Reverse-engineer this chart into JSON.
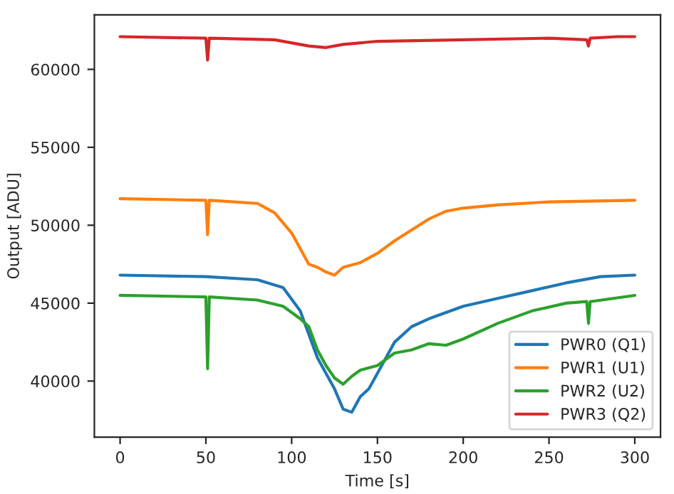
{
  "chart_data": {
    "type": "line",
    "xlabel": "Time [s]",
    "ylabel": "Output [ADU]",
    "xlim": [
      -15,
      315
    ],
    "xticks": [
      0,
      50,
      100,
      150,
      200,
      250,
      300
    ],
    "ylim": [
      36400,
      63500
    ],
    "yticks": [
      40000,
      45000,
      50000,
      55000,
      60000
    ],
    "grid": false,
    "legend": "bottom right",
    "marker": "none",
    "line_style": "solid",
    "series": [
      {
        "name": "PWR0 (Q1)",
        "color": "#1f77b4",
        "x": [
          0,
          50,
          80,
          95,
          105,
          110,
          115,
          120,
          125,
          130,
          135,
          140,
          145,
          150,
          155,
          160,
          170,
          180,
          200,
          220,
          240,
          260,
          280,
          300
        ],
        "values": [
          46800,
          46700,
          46500,
          46000,
          44500,
          43000,
          41500,
          40500,
          39500,
          38200,
          38000,
          39000,
          39500,
          40500,
          41500,
          42500,
          43500,
          44000,
          44800,
          45300,
          45800,
          46300,
          46700,
          46800
        ]
      },
      {
        "name": "PWR1 (U1)",
        "color": "#ff7f0e",
        "x": [
          0,
          50,
          51,
          52,
          80,
          90,
          100,
          105,
          110,
          115,
          120,
          125,
          130,
          140,
          150,
          160,
          170,
          180,
          190,
          200,
          220,
          250,
          300
        ],
        "values": [
          51700,
          51600,
          49400,
          51600,
          51400,
          50800,
          49500,
          48500,
          47500,
          47300,
          47000,
          46800,
          47300,
          47600,
          48200,
          49000,
          49700,
          50400,
          50900,
          51100,
          51300,
          51500,
          51600
        ]
      },
      {
        "name": "PWR2 (U2)",
        "color": "#2ca02c",
        "x": [
          0,
          50,
          51,
          52,
          80,
          95,
          105,
          110,
          115,
          120,
          125,
          130,
          135,
          140,
          150,
          160,
          170,
          180,
          190,
          200,
          220,
          240,
          260,
          272,
          273,
          274,
          300
        ],
        "values": [
          45500,
          45400,
          40800,
          45400,
          45200,
          44800,
          44000,
          43500,
          42000,
          41000,
          40200,
          39800,
          40300,
          40700,
          41000,
          41800,
          42000,
          42400,
          42300,
          42700,
          43700,
          44500,
          45000,
          45100,
          43700,
          45100,
          45500
        ]
      },
      {
        "name": "PWR3 (Q2)",
        "color": "#d62728",
        "x": [
          0,
          50,
          51,
          52,
          90,
          110,
          120,
          130,
          150,
          200,
          250,
          272,
          273,
          274,
          290,
          300
        ],
        "values": [
          62100,
          62000,
          60600,
          62000,
          61900,
          61500,
          61400,
          61600,
          61800,
          61900,
          62000,
          61900,
          61500,
          62000,
          62100,
          62100
        ]
      }
    ]
  }
}
